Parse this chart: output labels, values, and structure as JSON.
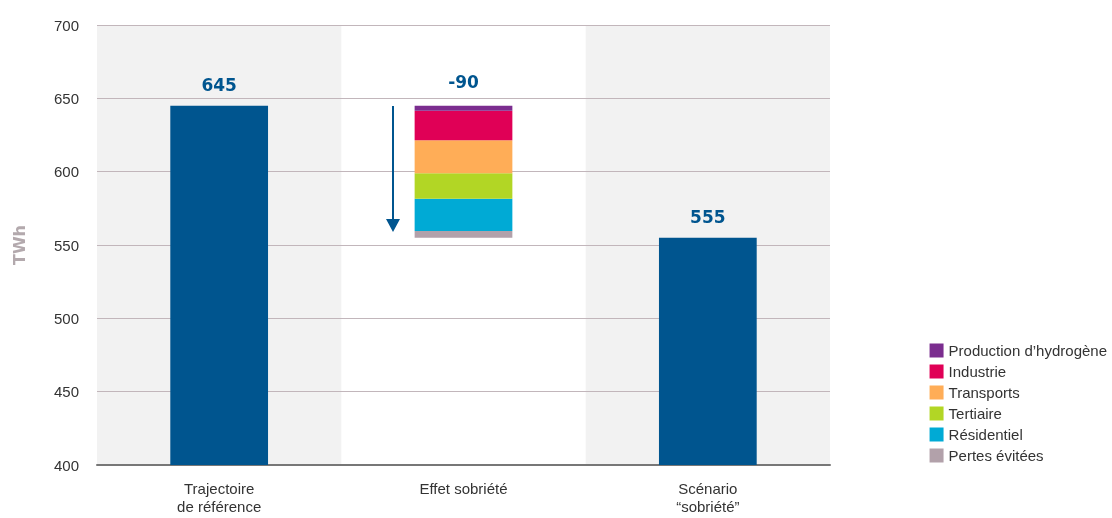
{
  "chart_data": {
    "type": "bar",
    "ylabel": "TWh",
    "categories": [
      "Trajectoire\nde référence",
      "Effet sobriété",
      "Scénario\n“sobriété”"
    ],
    "ylim": [
      400,
      700
    ],
    "yticks": [
      400,
      450,
      500,
      550,
      600,
      650,
      700
    ],
    "grid": "y",
    "legend": "bottom right",
    "series": [
      {
        "color": "#00558f",
        "values": [
          645,
          null,
          555
        ],
        "value_labels": [
          "645",
          null,
          "555"
        ]
      },
      {
        "name": "Pertes évitées",
        "color": "#b2a1aa",
        "values": [
          null,
          4.5,
          null
        ],
        "base": [
          null,
          555,
          null
        ]
      },
      {
        "name": "Résidentiel",
        "color": "#00aad5",
        "values": [
          null,
          22,
          null
        ],
        "base": [
          null,
          559.5,
          null
        ]
      },
      {
        "name": "Tertiaire",
        "color": "#b2d625",
        "values": [
          null,
          17.5,
          null
        ],
        "base": [
          null,
          581.5,
          null
        ]
      },
      {
        "name": "Transports",
        "color": "#ffad57",
        "values": [
          null,
          22.5,
          null
        ],
        "base": [
          null,
          599,
          null
        ]
      },
      {
        "name": "Industrie",
        "color": "#e00056",
        "values": [
          null,
          20,
          null
        ],
        "base": [
          null,
          621.5,
          null
        ]
      },
      {
        "name": "Production d’hydrogène",
        "color": "#7b2d8f",
        "values": [
          null,
          3.5,
          null
        ],
        "base": [
          null,
          641.5,
          null
        ]
      }
    ],
    "bands": [
      {
        "axis": "x",
        "from": "Trajectoire\nde référence",
        "to": "Trajectoire\nde référence",
        "color": "#f2f2f2"
      },
      {
        "axis": "x",
        "from": "Scénario\n“sobriété”",
        "to": "Scénario\n“sobriété”",
        "color": "#f2f2f2"
      }
    ],
    "annotations": [
      "-90"
    ]
  }
}
